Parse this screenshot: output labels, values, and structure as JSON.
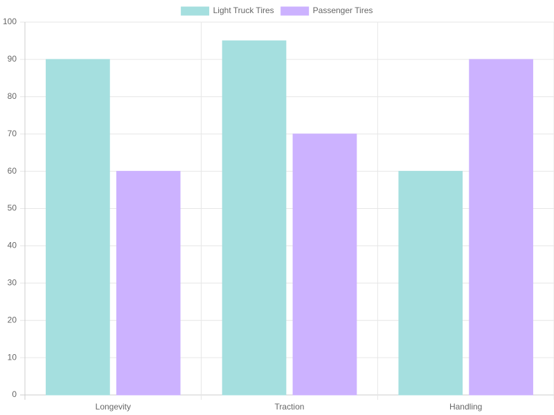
{
  "chart_data": {
    "type": "bar",
    "categories": [
      "Longevity",
      "Traction",
      "Handling"
    ],
    "series": [
      {
        "name": "Light Truck Tires",
        "color": "#a5dfdf",
        "values": [
          90,
          95,
          60
        ]
      },
      {
        "name": "Passenger Tires",
        "color": "#ccb2ff",
        "values": [
          60,
          70,
          90
        ]
      }
    ],
    "ylim": [
      0,
      100
    ],
    "yticks": [
      0,
      10,
      20,
      30,
      40,
      50,
      60,
      70,
      80,
      90,
      100
    ],
    "grid": true,
    "legend": "top"
  }
}
